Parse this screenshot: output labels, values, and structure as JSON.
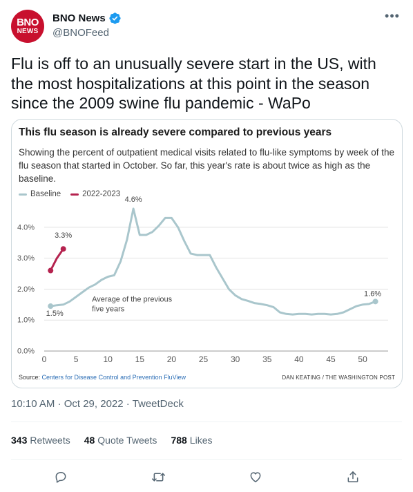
{
  "account": {
    "avatar_line1": "BNO",
    "avatar_line2": "NEWS",
    "name": "BNO News",
    "handle": "@BNOFeed"
  },
  "tweet_text": "Flu is off to an unusually severe start in the US, with the most hospitalizations at this point in the season since the 2009 swine flu pandemic - WaPo",
  "timestamp": "10:10 AM · Oct 29, 2022 · TweetDeck",
  "stats": {
    "retweets_count": "343",
    "retweets_label": "Retweets",
    "quotes_count": "48",
    "quotes_label": "Quote Tweets",
    "likes_count": "788",
    "likes_label": "Likes"
  },
  "colors": {
    "verified": "#1d9bf0",
    "baseline": "#a9c6cc",
    "current": "#b5234f",
    "avatar": "#c8102e"
  },
  "icons": [
    "verified-badge-icon",
    "more-icon",
    "reply-icon",
    "retweet-icon",
    "like-icon",
    "share-icon"
  ],
  "chart_source": {
    "prefix": "Source: ",
    "link": "Centers for Disease Control and Prevention FluView",
    "credit": "DAN KEATING / THE WASHINGTON POST"
  },
  "chart_data": {
    "type": "line",
    "title": "This flu season is already severe compared to previous years",
    "subtitle": "Showing the percent of outpatient medical visits related to flu-like symptoms by week of the flu season that started in October. So far, this year's rate is about twice as high as the baseline.",
    "xlim": [
      0,
      54
    ],
    "ylim": [
      0,
      4.8
    ],
    "x_ticks": [
      0,
      5,
      10,
      15,
      20,
      25,
      30,
      35,
      40,
      45,
      50
    ],
    "y_ticks": [
      {
        "value": 0,
        "label": "0.0%"
      },
      {
        "value": 1,
        "label": "1.0%"
      },
      {
        "value": 2,
        "label": "2.0%"
      },
      {
        "value": 3,
        "label": "3.0%"
      },
      {
        "value": 4,
        "label": "4.0%"
      }
    ],
    "grid": true,
    "legend_position": "top-left",
    "series": [
      {
        "name": "Baseline",
        "color": "#a9c6cc",
        "x": [
          1,
          2,
          3,
          4,
          5,
          6,
          7,
          8,
          9,
          10,
          11,
          12,
          13,
          14,
          15,
          16,
          17,
          18,
          19,
          20,
          21,
          22,
          23,
          24,
          25,
          26,
          27,
          28,
          29,
          30,
          31,
          32,
          33,
          34,
          35,
          36,
          37,
          38,
          39,
          40,
          41,
          42,
          43,
          44,
          45,
          46,
          47,
          48,
          49,
          50,
          51,
          52
        ],
        "y": [
          1.45,
          1.48,
          1.5,
          1.6,
          1.75,
          1.9,
          2.05,
          2.15,
          2.3,
          2.4,
          2.45,
          2.9,
          3.6,
          4.6,
          3.75,
          3.75,
          3.85,
          4.05,
          4.3,
          4.3,
          4.0,
          3.55,
          3.15,
          3.1,
          3.1,
          3.1,
          2.7,
          2.35,
          2.0,
          1.8,
          1.68,
          1.62,
          1.55,
          1.52,
          1.48,
          1.42,
          1.25,
          1.2,
          1.18,
          1.2,
          1.2,
          1.18,
          1.2,
          1.2,
          1.18,
          1.2,
          1.25,
          1.35,
          1.45,
          1.5,
          1.52,
          1.6
        ]
      },
      {
        "name": "2022-2023",
        "color": "#b5234f",
        "x": [
          1,
          2,
          3
        ],
        "y": [
          2.6,
          3.0,
          3.3
        ]
      }
    ],
    "annotations": [
      {
        "text": "4.6%",
        "x": 14,
        "y": 4.6
      },
      {
        "text": "3.3%",
        "x": 3,
        "y": 3.3
      },
      {
        "text": "1.5%",
        "x": 1,
        "y": 1.45
      },
      {
        "text": "1.6%",
        "x": 52,
        "y": 1.6
      },
      {
        "text": "Average of the previous",
        "x": 7.5,
        "y": 1.6
      },
      {
        "text": "five years",
        "x": 7.5,
        "y": 1.28
      }
    ]
  }
}
